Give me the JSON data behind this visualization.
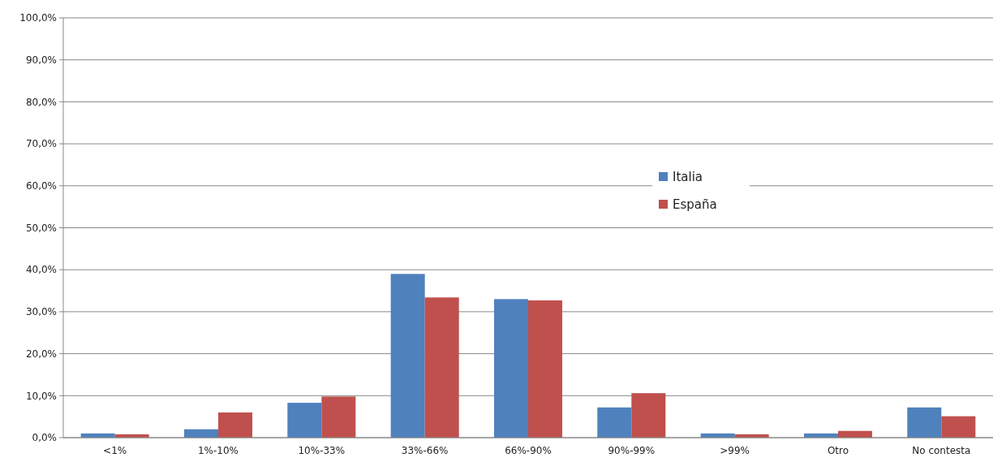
{
  "chart_data": {
    "type": "bar",
    "categories": [
      "<1%",
      "1%-10%",
      "10%-33%",
      "33%-66%",
      "66%-90%",
      "90%-99%",
      ">99%",
      "Otro",
      "No contesta"
    ],
    "series": [
      {
        "name": "Italia",
        "color": "#4f81bd",
        "values": [
          1.0,
          2.0,
          8.3,
          39.0,
          33.0,
          7.2,
          1.0,
          1.0,
          7.2
        ]
      },
      {
        "name": "España",
        "color": "#c0504d",
        "values": [
          0.8,
          6.0,
          9.8,
          33.4,
          32.7,
          10.6,
          0.8,
          1.6,
          5.1
        ]
      }
    ],
    "ylim": [
      0,
      100
    ],
    "yticks": [
      {
        "value": 0,
        "label": "0,0%"
      },
      {
        "value": 10,
        "label": "10,0%"
      },
      {
        "value": 20,
        "label": "20,0%"
      },
      {
        "value": 30,
        "label": "30,0%"
      },
      {
        "value": 40,
        "label": "40,0%"
      },
      {
        "value": 50,
        "label": "50,0%"
      },
      {
        "value": 60,
        "label": "60,0%"
      },
      {
        "value": 70,
        "label": "70,0%"
      },
      {
        "value": 80,
        "label": "80,0%"
      },
      {
        "value": 90,
        "label": "90,0%"
      },
      {
        "value": 100,
        "label": "100,0%"
      }
    ],
    "grid": "y",
    "legend": "right"
  }
}
